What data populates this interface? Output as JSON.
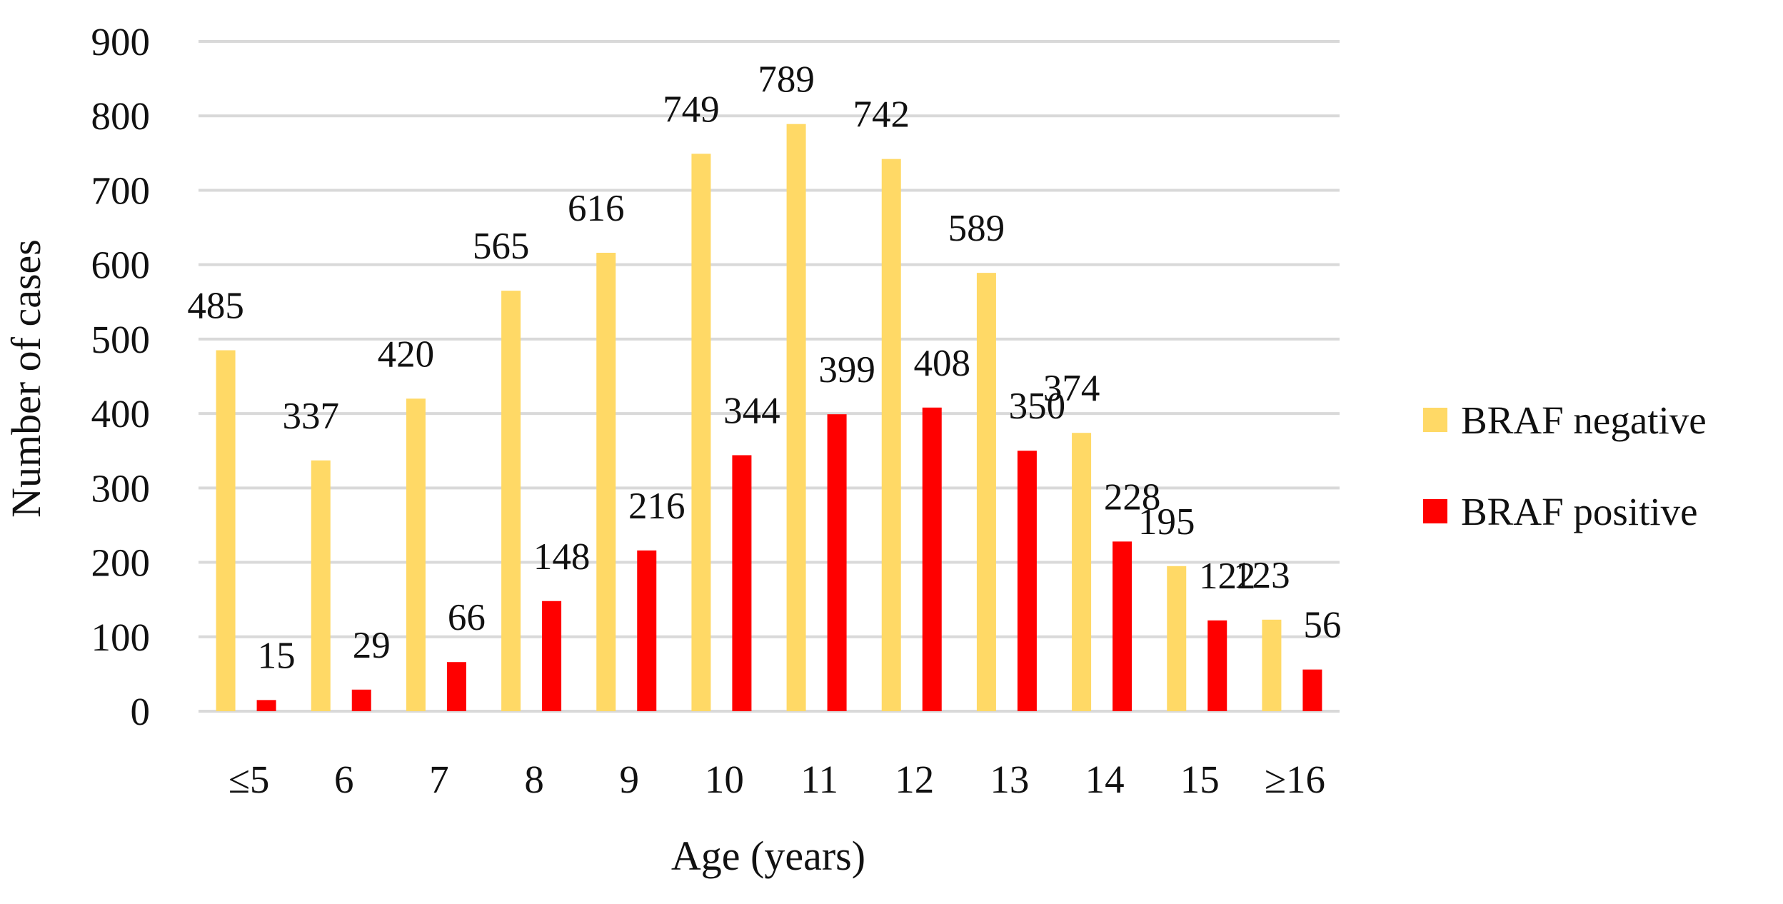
{
  "chart_data": {
    "type": "bar",
    "title": "",
    "xlabel": "Age (years)",
    "ylabel": "Number of cases",
    "ylim": [
      0,
      900
    ],
    "ytick_step": 100,
    "grid": true,
    "legend_position": "right",
    "categories": [
      "≤5",
      "6",
      "7",
      "8",
      "9",
      "10",
      "11",
      "12",
      "13",
      "14",
      "15",
      "≥16"
    ],
    "series": [
      {
        "name": "BRAF negative",
        "color": "#FFD966",
        "values": [
          485,
          337,
          420,
          565,
          616,
          749,
          789,
          742,
          589,
          374,
          195,
          123
        ]
      },
      {
        "name": "BRAF positive",
        "color": "#FF0000",
        "values": [
          15,
          29,
          66,
          148,
          216,
          344,
          399,
          408,
          350,
          228,
          122,
          56
        ]
      }
    ]
  }
}
